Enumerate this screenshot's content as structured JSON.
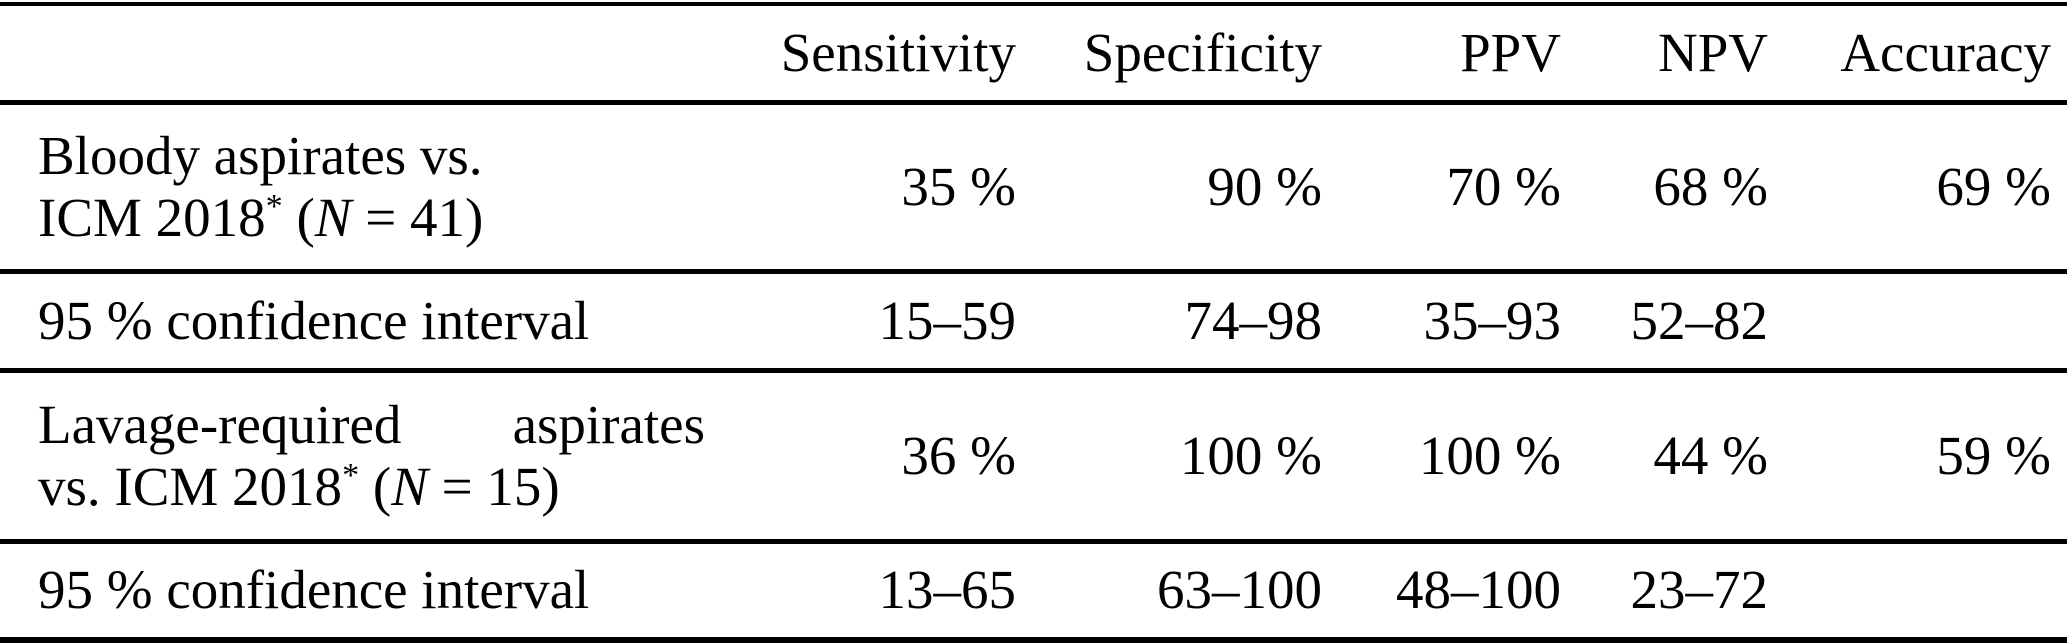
{
  "colors": {
    "text": "#000000",
    "rule": "#000000",
    "background": "#ffffff"
  },
  "table": {
    "columns": [
      {
        "key": "label",
        "label": ""
      },
      {
        "key": "sensitivity",
        "label": "Sensitivity"
      },
      {
        "key": "specificity",
        "label": "Specificity"
      },
      {
        "key": "ppv",
        "label": "PPV"
      },
      {
        "key": "npv",
        "label": "NPV"
      },
      {
        "key": "accuracy",
        "label": "Accuracy"
      }
    ],
    "rows": [
      {
        "name": "bloody-aspirates",
        "label_lines": [
          {
            "justify": false,
            "parts": [
              {
                "t": "Bloody aspirates vs."
              }
            ]
          },
          {
            "justify": false,
            "parts": [
              {
                "t": "ICM 2018"
              },
              {
                "t": "*",
                "sup": true
              },
              {
                "t": " ("
              },
              {
                "t": "N",
                "italic": true
              },
              {
                "t": " = 41)"
              }
            ]
          }
        ],
        "values": [
          "35 %",
          "90 %",
          "70 %",
          "68 %",
          "69 %"
        ]
      },
      {
        "name": "bloody-aspirates-ci",
        "label_lines": [
          {
            "justify": false,
            "parts": [
              {
                "t": "95 % confidence interval"
              }
            ]
          }
        ],
        "values": [
          "15–59",
          "74–98",
          "35–93",
          "52–82",
          ""
        ]
      },
      {
        "name": "lavage-required-aspirates",
        "label_lines": [
          {
            "justify": true,
            "parts": [
              {
                "t": "Lavage-required"
              },
              {
                "t": "aspirates"
              }
            ]
          },
          {
            "justify": false,
            "parts": [
              {
                "t": "vs. ICM 2018"
              },
              {
                "t": "*",
                "sup": true
              },
              {
                "t": " ("
              },
              {
                "t": "N",
                "italic": true
              },
              {
                "t": " = 15)"
              }
            ]
          }
        ],
        "values": [
          "36 %",
          "100 %",
          "100 %",
          "44 %",
          "59 %"
        ]
      },
      {
        "name": "lavage-required-aspirates-ci",
        "label_lines": [
          {
            "justify": false,
            "parts": [
              {
                "t": "95 % confidence interval"
              }
            ]
          }
        ],
        "values": [
          "13–65",
          "63–100",
          "48–100",
          "23–72",
          ""
        ]
      }
    ]
  }
}
